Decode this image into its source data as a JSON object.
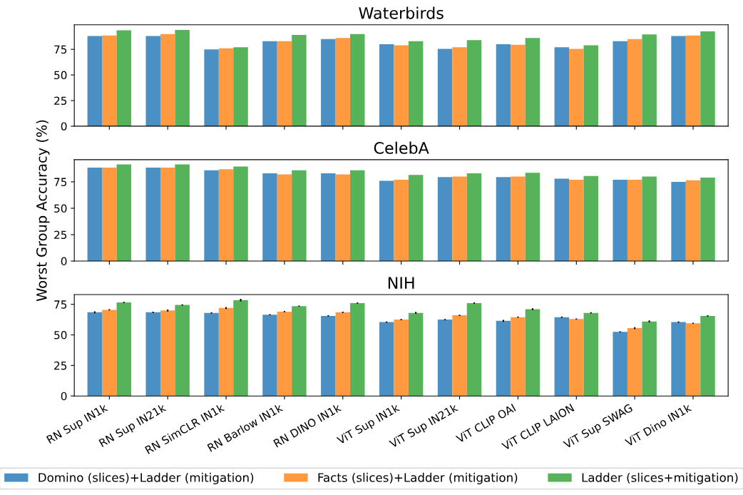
{
  "chart_data": [
    {
      "type": "bar",
      "title": "Waterbirds",
      "categories": [
        null,
        null,
        null,
        null,
        null,
        null,
        null,
        null,
        null,
        null,
        null
      ],
      "ylim": [
        0,
        99
      ],
      "yticks": [
        0,
        25,
        50,
        75
      ],
      "tick_labels": "y",
      "grid": false,
      "legend": false,
      "series": [
        {
          "color": "#4a90c4",
          "values": [
            88,
            88,
            75,
            83,
            85,
            80,
            75.5,
            80,
            77,
            83,
            88
          ]
        },
        {
          "color": "#ff9a40",
          "values": [
            88.5,
            90,
            76,
            83,
            86,
            79,
            77,
            79.5,
            75.5,
            85,
            88.5
          ]
        },
        {
          "color": "#56b35a",
          "values": [
            93.5,
            94,
            77,
            89,
            90,
            83,
            84,
            86,
            79,
            89.5,
            92.5
          ]
        }
      ]
    },
    {
      "type": "bar",
      "title": "CelebA",
      "ylabel": "Worst Group Accuracy (%)",
      "categories": [
        null,
        null,
        null,
        null,
        null,
        null,
        null,
        null,
        null,
        null,
        null
      ],
      "ylim": [
        0,
        96
      ],
      "yticks": [
        0,
        25,
        50,
        75
      ],
      "tick_labels": "y",
      "grid": false,
      "legend": false,
      "series": [
        {
          "color": "#4a90c4",
          "values": [
            88.5,
            88.5,
            86,
            83,
            83,
            76,
            79.5,
            79.5,
            78,
            77,
            75
          ]
        },
        {
          "color": "#ff9a40",
          "values": [
            88.5,
            88.5,
            87,
            82,
            82,
            77,
            80,
            80,
            77,
            77,
            76.5
          ]
        },
        {
          "color": "#56b35a",
          "values": [
            91.5,
            91.5,
            89.5,
            86,
            86,
            81.5,
            83,
            83.5,
            80.5,
            80,
            79
          ]
        }
      ]
    },
    {
      "type": "bar",
      "title": "NIH",
      "categories": [
        "RN Sup IN1k",
        "RN Sup IN21k",
        "RN SimCLR IN1k",
        "RN Barlow IN1k",
        "RN DINO IN1k",
        "ViT Sup IN1k",
        "ViT Sup IN21k",
        "ViT CLIP OAI",
        "ViT CLIP LAION",
        "ViT Sup SWAG",
        "ViT Dino IN1k"
      ],
      "ylim": [
        0,
        83
      ],
      "yticks": [
        0,
        25,
        50,
        75
      ],
      "grid": false,
      "legend": "bottom",
      "series": [
        {
          "name": "Domino (slices)+Ladder (mitigation)",
          "color": "#4a90c4",
          "values": [
            68.5,
            68.5,
            68,
            66.5,
            65.5,
            60.5,
            62.5,
            61.5,
            64.5,
            52.5,
            60.5
          ],
          "errors": [
            0.8,
            0.5,
            0.5,
            0.5,
            0.5,
            0.5,
            0.5,
            0.8,
            0.5,
            0.5,
            0.5
          ]
        },
        {
          "name": "Facts (slices)+Ladder (mitigation)",
          "color": "#ff9a40",
          "values": [
            70.5,
            70,
            72,
            69,
            68.5,
            62.5,
            66,
            64.5,
            63,
            55.5,
            59.5
          ],
          "errors": [
            0.5,
            0.8,
            0.8,
            0.5,
            0.5,
            0.5,
            0.5,
            0.5,
            0.5,
            0.8,
            0.5
          ]
        },
        {
          "name": "Ladder (slices+mitigation)",
          "color": "#56b35a",
          "values": [
            76.5,
            74.5,
            78.5,
            73.5,
            76,
            68,
            76,
            71,
            68,
            61,
            65.5
          ],
          "errors": [
            0.5,
            0.5,
            1,
            0.5,
            0.5,
            0.8,
            0.5,
            0.8,
            0.5,
            0.8,
            0.5
          ]
        }
      ]
    }
  ]
}
